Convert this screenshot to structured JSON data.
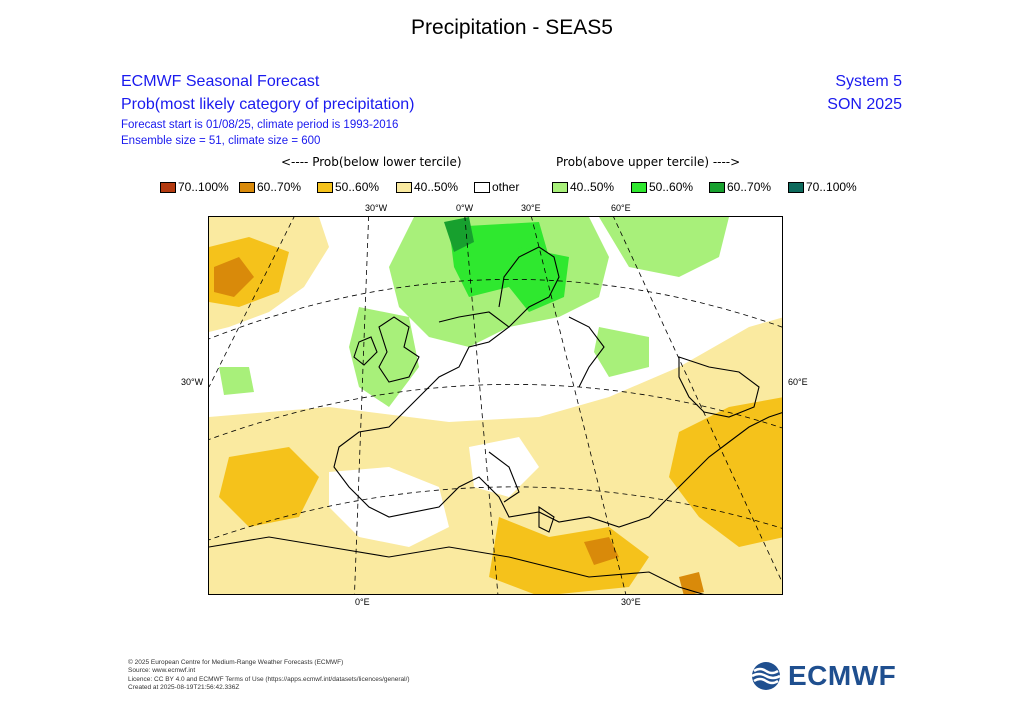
{
  "title": "Precipitation - SEAS5",
  "header": {
    "line1": "ECMWF Seasonal Forecast",
    "line2": "Prob(most likely category of precipitation)",
    "line3": "Forecast start is 01/08/25, climate period is 1993-2016",
    "line4": "Ensemble size = 51, climate size = 600",
    "system": "System 5",
    "season": "SON 2025"
  },
  "legend": {
    "below_label": "<---- Prob(below lower tercile)",
    "above_label": "Prob(above upper tercile) ---->",
    "items": [
      {
        "label": "70..100%",
        "color": "#b33a10"
      },
      {
        "label": "60..70%",
        "color": "#d98a0a"
      },
      {
        "label": "50..60%",
        "color": "#f5c21b"
      },
      {
        "label": "40..50%",
        "color": "#faeaa0"
      },
      {
        "label": "other",
        "color": "#ffffff"
      },
      {
        "label": "40..50%",
        "color": "#a8f07a"
      },
      {
        "label": "50..60%",
        "color": "#2fe82f"
      },
      {
        "label": "60..70%",
        "color": "#17a02e"
      },
      {
        "label": "70..100%",
        "color": "#0d6a5c"
      }
    ]
  },
  "axes": {
    "top_ticks": [
      "30°W",
      "0°W",
      "30°E",
      "60°E"
    ],
    "left_tick": "30°W",
    "right_tick": "60°E",
    "bottom_ticks": [
      "0°E",
      "30°E"
    ]
  },
  "credits": {
    "line1": "© 2025 European Centre for Medium-Range Weather Forecasts (ECMWF)",
    "line2": "Source: www.ecmwf.int",
    "line3": "Licence: CC BY 4.0 and ECMWF Terms of Use (https://apps.ecmwf.int/datasets/licences/general/)",
    "line4": "Created at 2025-08-19T21:56:42.336Z"
  },
  "logo_text": "ECMWF",
  "colors": {
    "header_blue": "#1a1aee",
    "logo_blue": "#1f4f8f"
  }
}
